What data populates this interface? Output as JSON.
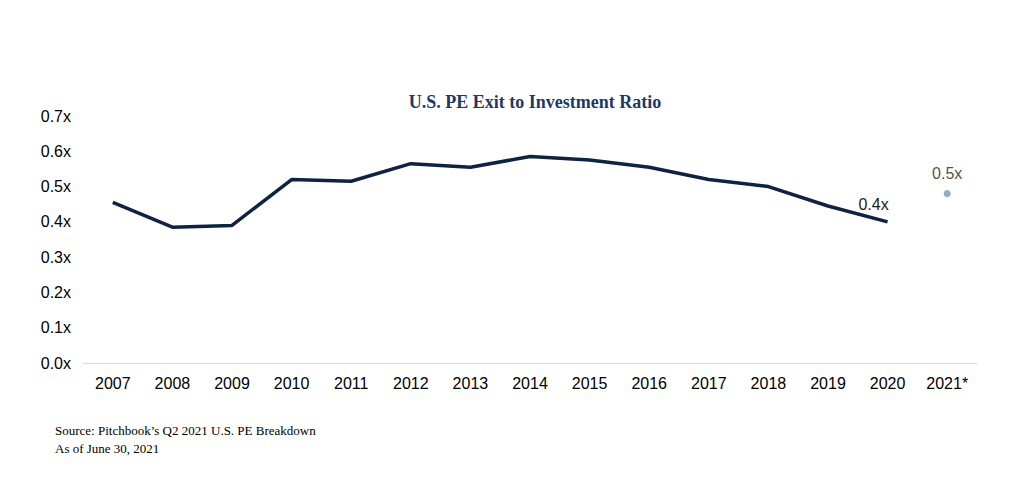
{
  "chart_data": {
    "type": "line",
    "title": "U.S. PE Exit to Investment Ratio",
    "source": [
      "Source: Pitchbook’s Q2 2021 U.S. PE Breakdown",
      "As of June 30, 2021"
    ],
    "categories": [
      "2007",
      "2008",
      "2009",
      "2010",
      "2011",
      "2012",
      "2013",
      "2014",
      "2015",
      "2016",
      "2017",
      "2018",
      "2019",
      "2020",
      "2021*"
    ],
    "series": [
      {
        "type": "line",
        "color": "#0e2341",
        "marker": "none",
        "line_style": "solid",
        "values": [
          0.455,
          0.385,
          0.39,
          0.52,
          0.515,
          0.565,
          0.555,
          0.585,
          0.575,
          0.555,
          0.52,
          0.5,
          0.445,
          0.4,
          null
        ],
        "value_labels": [
          null,
          null,
          null,
          null,
          null,
          null,
          null,
          null,
          null,
          null,
          null,
          null,
          null,
          "0.4x",
          null
        ]
      },
      {
        "type": "scatter",
        "color": "#8096ac",
        "marker": "circle",
        "line_style": "none",
        "values": [
          null,
          null,
          null,
          null,
          null,
          null,
          null,
          null,
          null,
          null,
          null,
          null,
          null,
          null,
          0.48
        ],
        "value_labels": [
          null,
          null,
          null,
          null,
          null,
          null,
          null,
          null,
          null,
          null,
          null,
          null,
          null,
          null,
          "0.5x"
        ]
      }
    ],
    "ylim": [
      0,
      0.7
    ],
    "yticks": [
      {
        "value": 0,
        "label": "0.0x"
      },
      {
        "value": 0.1,
        "label": "0.1x"
      },
      {
        "value": 0.2,
        "label": "0.2x"
      },
      {
        "value": 0.3,
        "label": "0.3x"
      },
      {
        "value": 0.4,
        "label": "0.4x"
      },
      {
        "value": 0.5,
        "label": "0.5x"
      },
      {
        "value": 0.6,
        "label": "0.6x"
      },
      {
        "value": 0.7,
        "label": "0.7x"
      }
    ],
    "grid": false,
    "data_labels": true
  }
}
